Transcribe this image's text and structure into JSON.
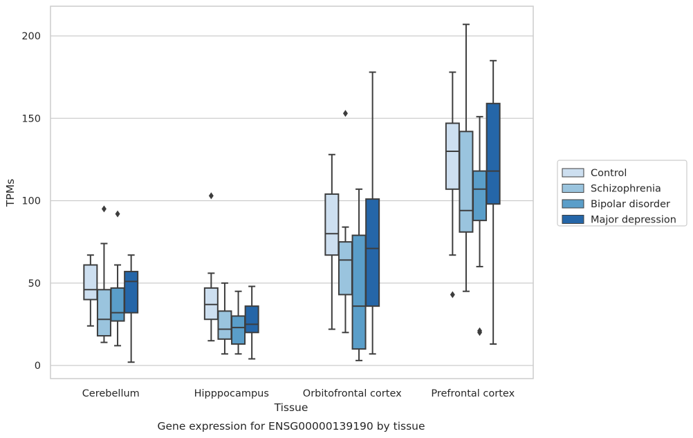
{
  "chart_data": {
    "type": "box",
    "caption": "Gene expression for ENSG00000139190 by tissue",
    "xlabel": "Tissue",
    "ylabel": "TPMs",
    "ylim": [
      -8,
      218
    ],
    "yticks": [
      0,
      50,
      100,
      150,
      200
    ],
    "grid": "horizontal",
    "legend_placement": "right",
    "categories": [
      "Cerebellum",
      "Hipppocampus",
      "Orbitofrontal cortex",
      "Prefrontal cortex"
    ],
    "series": [
      {
        "name": "Control",
        "color": "#cddff0",
        "boxes": [
          {
            "whisker_low": 24,
            "q1": 40,
            "median": 46,
            "q3": 61,
            "whisker_high": 67,
            "outliers": []
          },
          {
            "whisker_low": 15,
            "q1": 28,
            "median": 37,
            "q3": 47,
            "whisker_high": 56,
            "outliers": [
              103
            ]
          },
          {
            "whisker_low": 22,
            "q1": 67,
            "median": 80,
            "q3": 104,
            "whisker_high": 128,
            "outliers": []
          },
          {
            "whisker_low": 67,
            "q1": 107,
            "median": 130,
            "q3": 147,
            "whisker_high": 178,
            "outliers": [
              43
            ]
          }
        ]
      },
      {
        "name": "Schizophrenia",
        "color": "#9ac4de",
        "boxes": [
          {
            "whisker_low": 14,
            "q1": 18,
            "median": 28,
            "q3": 46,
            "whisker_high": 74,
            "outliers": [
              95
            ]
          },
          {
            "whisker_low": 7,
            "q1": 16,
            "median": 22,
            "q3": 33,
            "whisker_high": 50,
            "outliers": []
          },
          {
            "whisker_low": 20,
            "q1": 43,
            "median": 64,
            "q3": 75,
            "whisker_high": 84,
            "outliers": [
              153
            ]
          },
          {
            "whisker_low": 45,
            "q1": 81,
            "median": 94,
            "q3": 142,
            "whisker_high": 207,
            "outliers": []
          }
        ]
      },
      {
        "name": "Bipolar disorder",
        "color": "#5a9ec9",
        "boxes": [
          {
            "whisker_low": 12,
            "q1": 27,
            "median": 32,
            "q3": 47,
            "whisker_high": 61,
            "outliers": [
              92
            ]
          },
          {
            "whisker_low": 7,
            "q1": 13,
            "median": 23,
            "q3": 30,
            "whisker_high": 45,
            "outliers": []
          },
          {
            "whisker_low": 3,
            "q1": 10,
            "median": 36,
            "q3": 79,
            "whisker_high": 107,
            "outliers": []
          },
          {
            "whisker_low": 60,
            "q1": 88,
            "median": 107,
            "q3": 118,
            "whisker_high": 151,
            "outliers": [
              20,
              21
            ]
          }
        ]
      },
      {
        "name": "Major depression",
        "color": "#2566a8",
        "boxes": [
          {
            "whisker_low": 2,
            "q1": 32,
            "median": 51,
            "q3": 57,
            "whisker_high": 67,
            "outliers": []
          },
          {
            "whisker_low": 4,
            "q1": 20,
            "median": 25,
            "q3": 36,
            "whisker_high": 48,
            "outliers": []
          },
          {
            "whisker_low": 7,
            "q1": 36,
            "median": 71,
            "q3": 101,
            "whisker_high": 178,
            "outliers": []
          },
          {
            "whisker_low": 13,
            "q1": 98,
            "median": 118,
            "q3": 159,
            "whisker_high": 185,
            "outliers": []
          }
        ]
      }
    ]
  }
}
